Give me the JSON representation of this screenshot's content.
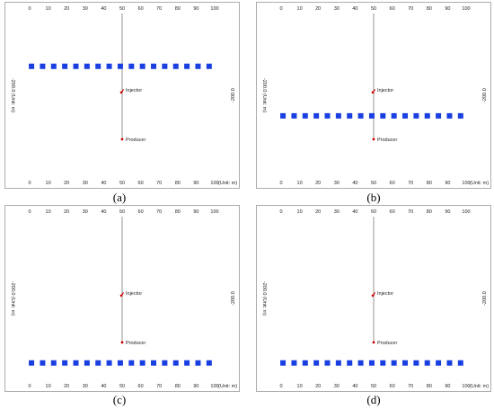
{
  "axis": {
    "ticks": [
      "0",
      "10",
      "20",
      "30",
      "40",
      "50",
      "60",
      "70",
      "80",
      "90",
      "100"
    ],
    "unit_label": "(Unit: m)",
    "left_label": "-200.0 (Unit: m)",
    "right_label": "-200.0"
  },
  "wells": {
    "injector_label": "Injector",
    "producer_label": "Producer",
    "injector_color": "#cc0000",
    "producer_color": "#cc0000",
    "wellbore_color": "#888888"
  },
  "barrier_color": "#1a3fe0",
  "panels": [
    {
      "id": "a",
      "caption": "(a)",
      "barrier_row": "top",
      "bottom_axis_unit_shown": true
    },
    {
      "id": "b",
      "caption": "(b)",
      "barrier_row": "middle",
      "bottom_axis_unit_shown": true
    },
    {
      "id": "c",
      "caption": "(c)",
      "barrier_row": "bottom",
      "bottom_axis_unit_shown": true
    },
    {
      "id": "d",
      "caption": "(d)",
      "barrier_row": "bottom",
      "bottom_axis_unit_shown": true
    }
  ]
}
